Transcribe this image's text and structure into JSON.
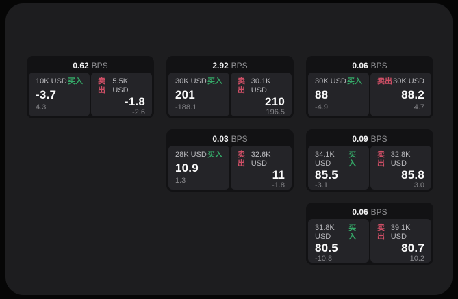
{
  "page": {
    "bg_outer": "#060606",
    "bg_panel": "#1d1d1f",
    "bg_card": "#121214",
    "bg_pane": "#242428",
    "buy_green": "#35a968",
    "sell_red": "#cf4f66"
  },
  "labels": {
    "bps": "BPS",
    "buy": "买入",
    "sell": "卖出"
  },
  "cards": [
    {
      "bps": "0.62",
      "buy": {
        "amount": "10K USD",
        "value": "-3.7",
        "change": "4.3"
      },
      "sell": {
        "amount": "5.5K USD",
        "value": "-1.8",
        "change": "-2.6"
      }
    },
    {
      "bps": "2.92",
      "buy": {
        "amount": "30K USD",
        "value": "201",
        "change": "-188.1"
      },
      "sell": {
        "amount": "30.1K USD",
        "value": "210",
        "change": "196.5"
      }
    },
    {
      "bps": "0.06",
      "buy": {
        "amount": "30K USD",
        "value": "88",
        "change": "-4.9"
      },
      "sell": {
        "amount": "30K USD",
        "value": "88.2",
        "change": "4.7"
      }
    },
    {
      "bps": "0.03",
      "buy": {
        "amount": "28K USD",
        "value": "10.9",
        "change": "1.3"
      },
      "sell": {
        "amount": "32.6K USD",
        "value": "11",
        "change": "-1.8"
      }
    },
    {
      "bps": "0.09",
      "buy": {
        "amount": "34.1K USD",
        "value": "85.5",
        "change": "-3.1"
      },
      "sell": {
        "amount": "32.8K USD",
        "value": "85.8",
        "change": "3.0"
      }
    },
    {
      "bps": "0.06",
      "buy": {
        "amount": "31.8K USD",
        "value": "80.5",
        "change": "-10.8"
      },
      "sell": {
        "amount": "39.1K USD",
        "value": "80.7",
        "change": "10.2"
      }
    }
  ]
}
